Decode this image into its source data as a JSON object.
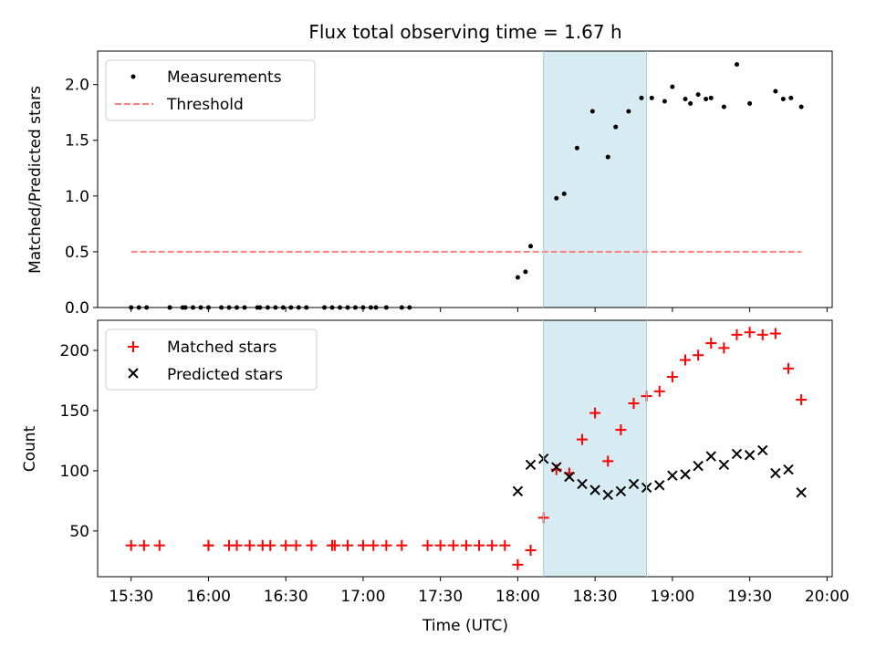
{
  "chart_data": [
    {
      "type": "scatter",
      "title": "Flux total observing time = 1.67 h",
      "ylabel": "Matched/Predicted stars",
      "xlabel": "",
      "xlim": [
        "15:17",
        "20:02"
      ],
      "ylim": [
        0,
        2.3
      ],
      "yticks": [
        "0.0",
        "0.5",
        "1.0",
        "1.5",
        "2.0"
      ],
      "shaded_x_range": [
        "18:10",
        "18:50"
      ],
      "shaded_color": "#add8e6",
      "legend_position": "upper-left",
      "legend": {
        "measurements": "Measurements",
        "threshold": "Threshold"
      },
      "threshold": {
        "y": 0.5,
        "x_range": [
          "15:30",
          "19:50"
        ],
        "color": "#ff7f7f",
        "style": "dashed"
      },
      "series": [
        {
          "name": "Measurements",
          "marker": "dot",
          "color": "#000000",
          "x": [
            "15:30",
            "15:33",
            "15:36",
            "15:45",
            "15:45",
            "15:50",
            "15:51",
            "15:54",
            "15:57",
            "16:00",
            "16:05",
            "16:08",
            "16:11",
            "16:14",
            "16:19",
            "16:20",
            "16:23",
            "16:26",
            "16:29",
            "16:32",
            "16:35",
            "16:38",
            "16:45",
            "16:48",
            "16:51",
            "16:54",
            "16:57",
            "17:00",
            "17:03",
            "17:05",
            "17:09",
            "17:15",
            "17:18",
            "18:00",
            "18:03",
            "18:05",
            "18:15",
            "18:18",
            "18:23",
            "18:29",
            "18:35",
            "18:38",
            "18:43",
            "18:48",
            "18:52",
            "18:57",
            "19:00",
            "19:05",
            "19:07",
            "19:10",
            "19:13",
            "19:15",
            "19:20",
            "19:25",
            "19:30",
            "19:40",
            "19:43",
            "19:46",
            "19:50"
          ],
          "y": [
            0,
            0,
            0,
            0,
            0,
            0,
            0,
            0,
            0,
            0,
            0,
            0,
            0,
            0,
            0,
            0,
            0,
            0,
            0,
            0,
            0,
            0,
            0,
            0,
            0,
            0,
            0,
            0,
            0,
            0,
            0,
            0,
            0,
            0.27,
            0.32,
            0.55,
            0.98,
            1.02,
            1.43,
            1.76,
            1.35,
            1.62,
            1.76,
            1.88,
            1.88,
            1.85,
            1.98,
            1.87,
            1.83,
            1.91,
            1.87,
            1.88,
            1.8,
            2.18,
            1.83,
            1.94,
            1.87,
            1.88,
            1.8
          ]
        }
      ]
    },
    {
      "type": "scatter",
      "title": "",
      "xlabel": "Time (UTC)",
      "ylabel": "Count",
      "xlim": [
        "15:17",
        "20:02"
      ],
      "ylim": [
        12,
        225
      ],
      "yticks": [
        "50",
        "100",
        "150",
        "200"
      ],
      "xticks": [
        "15:30",
        "16:00",
        "16:30",
        "17:00",
        "17:30",
        "18:00",
        "18:30",
        "19:00",
        "19:30",
        "20:00"
      ],
      "shaded_x_range": [
        "18:10",
        "18:50"
      ],
      "legend_position": "upper-left",
      "series": [
        {
          "name": "Matched stars",
          "marker": "plus",
          "color": "#ff0000",
          "x": [
            "15:30",
            "15:35",
            "15:41",
            "16:00",
            "16:00",
            "16:08",
            "16:11",
            "16:16",
            "16:21",
            "16:24",
            "16:30",
            "16:34",
            "16:40",
            "16:48",
            "16:49",
            "16:54",
            "17:00",
            "17:04",
            "17:09",
            "17:15",
            "17:25",
            "17:30",
            "17:35",
            "17:40",
            "17:45",
            "17:50",
            "17:55",
            "18:00",
            "18:05",
            "18:10",
            "18:15",
            "18:20",
            "18:25",
            "18:30",
            "18:35",
            "18:40",
            "18:45",
            "18:50",
            "18:55",
            "19:00",
            "19:05",
            "19:10",
            "19:15",
            "19:20",
            "19:25",
            "19:30",
            "19:35",
            "19:40",
            "19:45",
            "19:50"
          ],
          "y": [
            38,
            38,
            38,
            38,
            38,
            38,
            38,
            38,
            38,
            38,
            38,
            38,
            38,
            38,
            38,
            38,
            38,
            38,
            38,
            38,
            38,
            38,
            38,
            38,
            38,
            38,
            38,
            22,
            34,
            61,
            101,
            98,
            126,
            148,
            108,
            134,
            156,
            162,
            166,
            178,
            192,
            196,
            206,
            202,
            213,
            215,
            213,
            214,
            185,
            159
          ]
        },
        {
          "name": "Predicted stars",
          "marker": "x",
          "color": "#000000",
          "x": [
            "18:00",
            "18:05",
            "18:10",
            "18:15",
            "18:20",
            "18:25",
            "18:30",
            "18:35",
            "18:40",
            "18:45",
            "18:50",
            "18:55",
            "19:00",
            "19:05",
            "19:10",
            "19:15",
            "19:20",
            "19:25",
            "19:30",
            "19:35",
            "19:40",
            "19:45",
            "19:50"
          ],
          "y": [
            83,
            105,
            110,
            103,
            95,
            89,
            84,
            80,
            83,
            89,
            86,
            88,
            96,
            97,
            104,
            112,
            105,
            114,
            113,
            117,
            98,
            101,
            82
          ]
        }
      ]
    }
  ]
}
